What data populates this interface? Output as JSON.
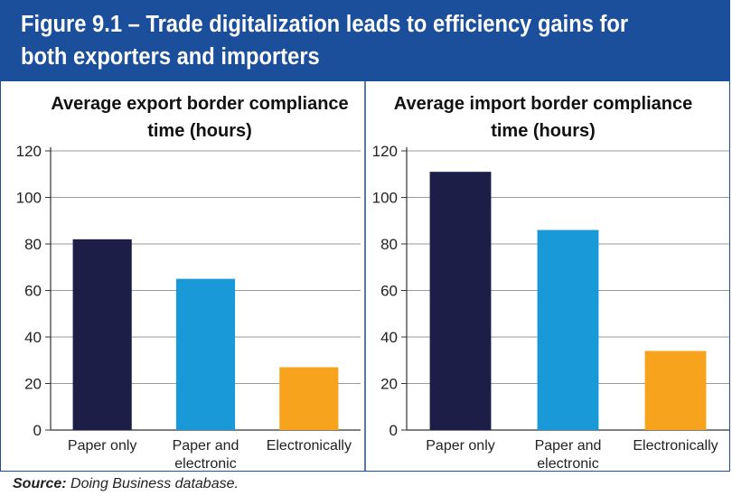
{
  "header": {
    "title": "Figure 9.1 – Trade digitalization leads to efficiency gains for both exporters and importers",
    "background_color": "#1b4f9c",
    "text_color": "#ffffff"
  },
  "source": {
    "label": "Source:",
    "text": "Doing Business database."
  },
  "chart_data": [
    {
      "type": "bar",
      "title": "Average export border compliance time (hours)",
      "categories": [
        "Paper only",
        "Paper and electronic",
        "Electronically"
      ],
      "values": [
        82,
        65,
        27
      ],
      "colors": [
        "#1d1e47",
        "#1a99d8",
        "#f7a31e"
      ],
      "ylim": [
        0,
        120
      ],
      "yticks": [
        0,
        20,
        40,
        60,
        80,
        100,
        120
      ],
      "grid": true,
      "xlabel": "",
      "ylabel": ""
    },
    {
      "type": "bar",
      "title": "Average import border compliance time (hours)",
      "categories": [
        "Paper only",
        "Paper and electronic",
        "Electronically"
      ],
      "values": [
        111,
        86,
        34
      ],
      "colors": [
        "#1d1e47",
        "#1a99d8",
        "#f7a31e"
      ],
      "ylim": [
        0,
        120
      ],
      "yticks": [
        0,
        20,
        40,
        60,
        80,
        100,
        120
      ],
      "grid": true,
      "xlabel": "",
      "ylabel": ""
    }
  ]
}
